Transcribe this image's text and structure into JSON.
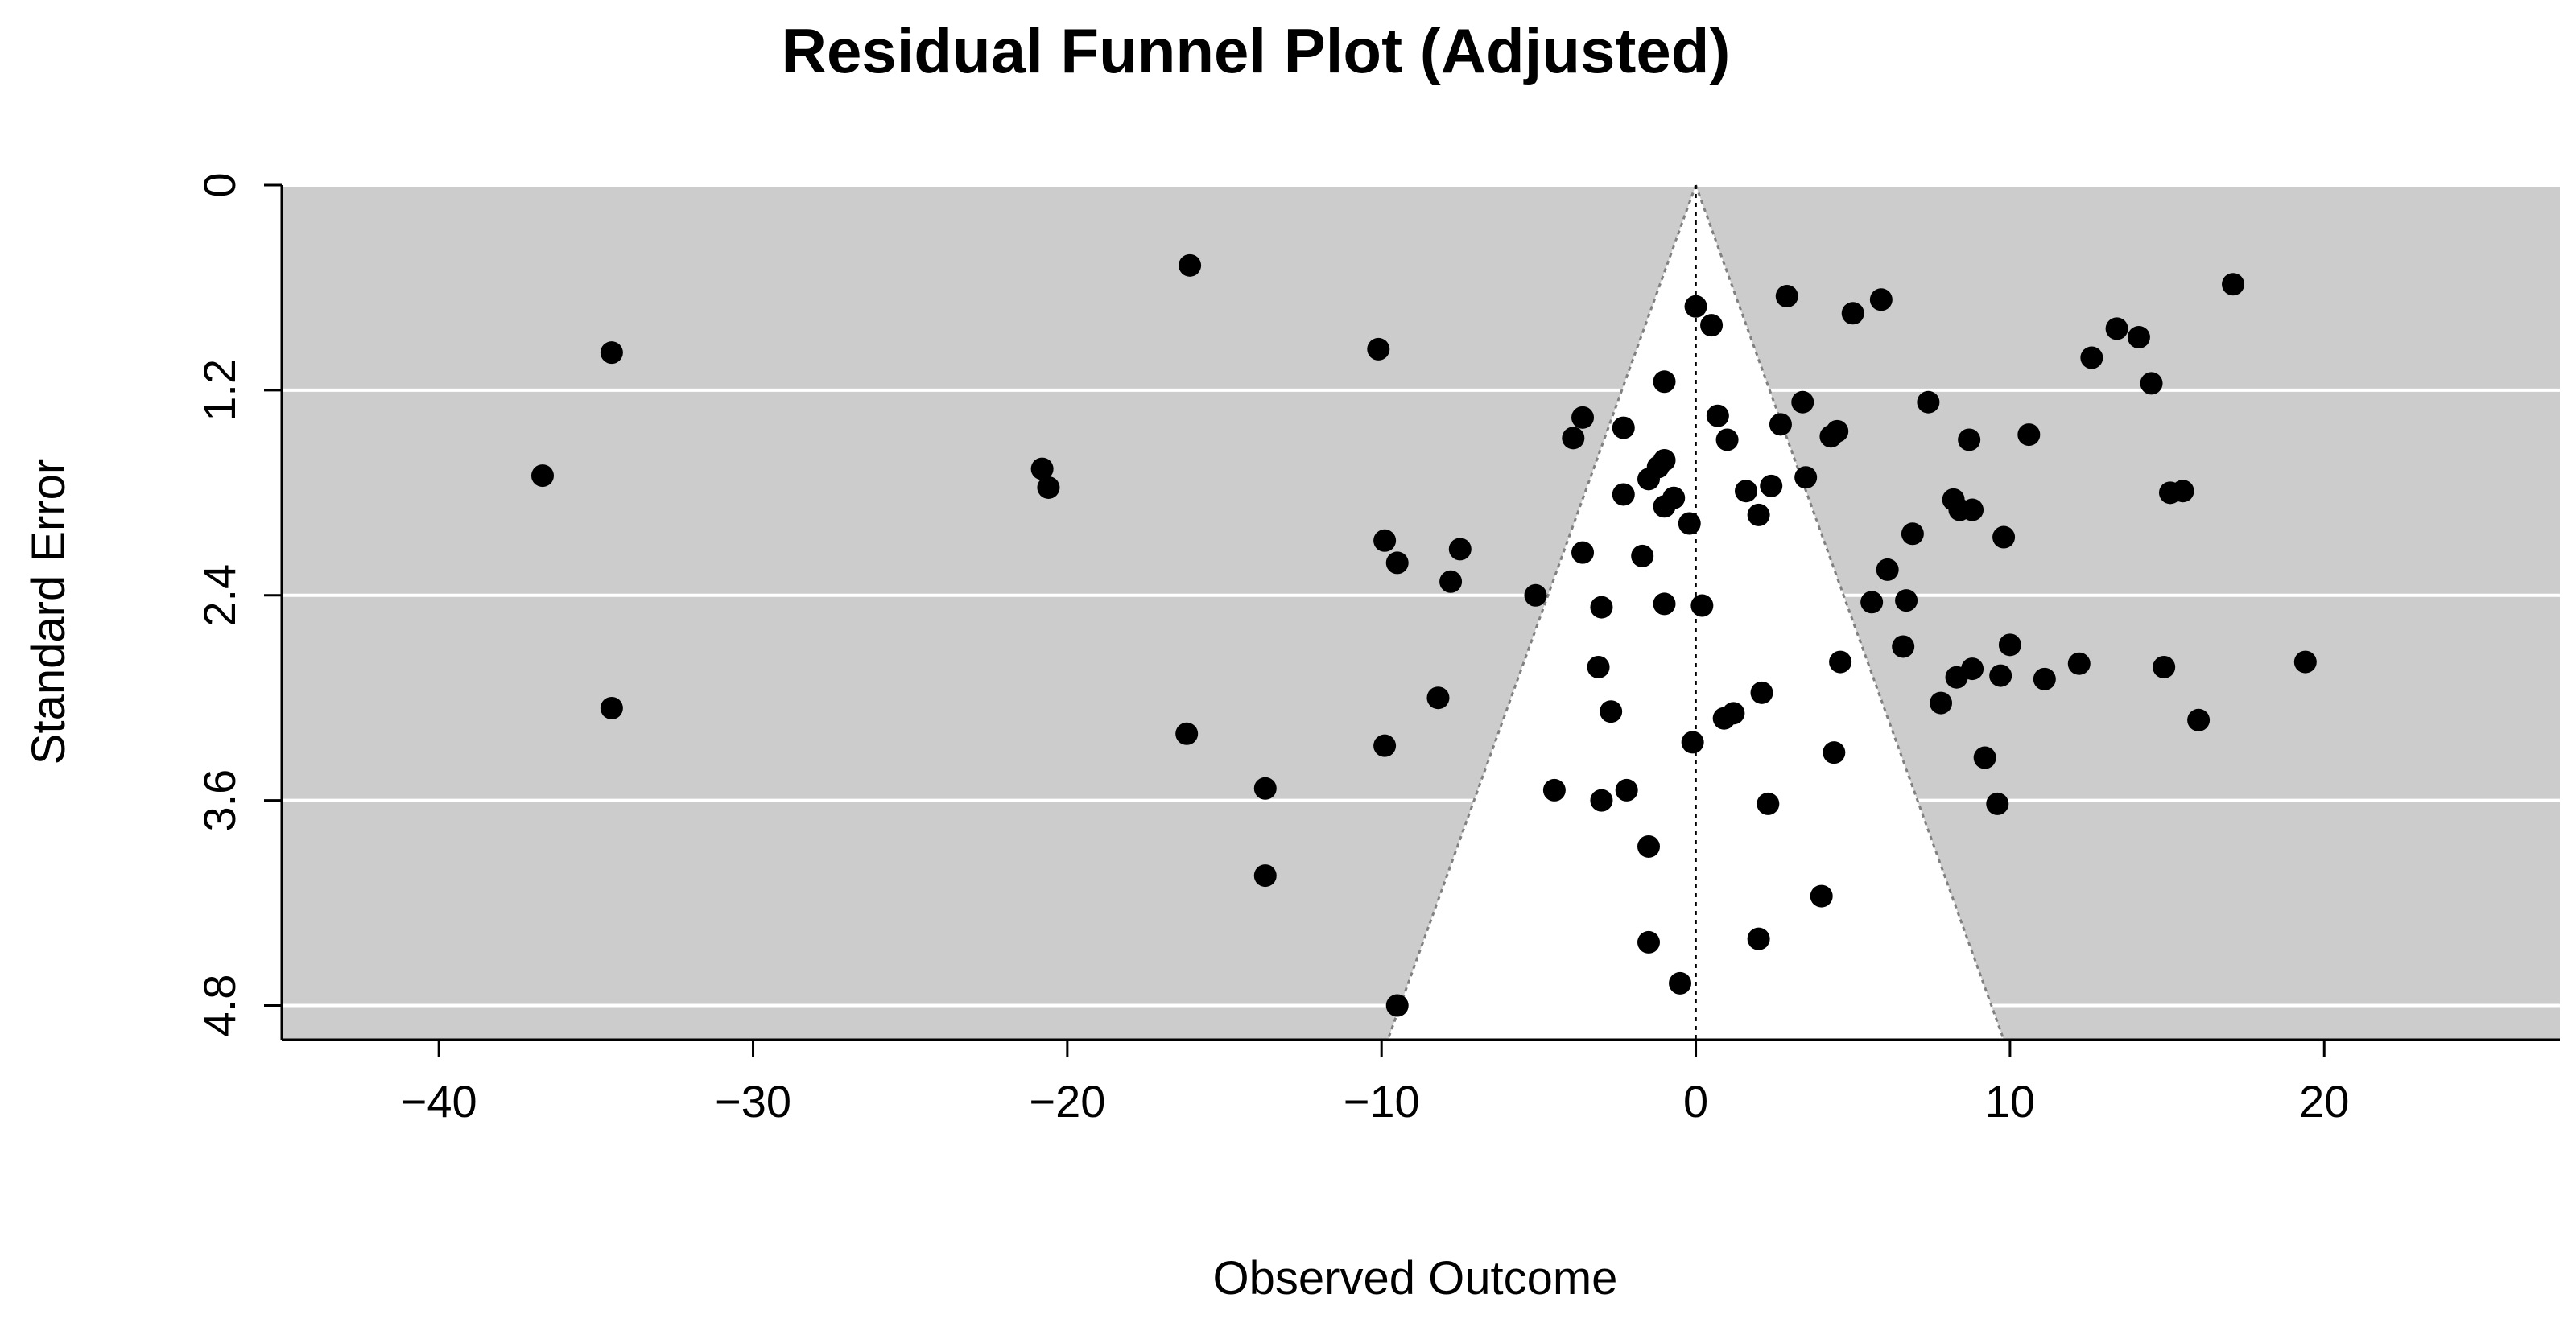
{
  "chart_data": {
    "type": "scatter",
    "title": "Residual Funnel Plot (Adjusted)",
    "xlabel": "Observed Outcome",
    "ylabel": "Standard Error",
    "xlim": [
      -45,
      27.5
    ],
    "ylim": [
      0,
      5.0
    ],
    "y_reversed": true,
    "x_ticks": [
      "-40",
      "-30",
      "-20",
      "-10",
      "0",
      "10",
      "20"
    ],
    "y_ticks": [
      "0",
      "1.2",
      "2.4",
      "3.6",
      "4.8"
    ],
    "grid": true,
    "legend": "none",
    "funnel": {
      "center": 0,
      "z": 1.96,
      "se_max": 5.0
    },
    "colors": {
      "panel_bg": "#cccccc",
      "funnel_bg": "#ffffff",
      "points": "#000000",
      "grid": "#ffffff",
      "funnel_edge": "#808080"
    },
    "points": [
      [
        -36.7,
        1.7
      ],
      [
        -34.5,
        0.98
      ],
      [
        -34.5,
        3.06
      ],
      [
        -16.1,
        0.47
      ],
      [
        -20.8,
        1.66
      ],
      [
        -20.6,
        1.77
      ],
      [
        -16.2,
        3.21
      ],
      [
        -13.7,
        3.53
      ],
      [
        -13.7,
        4.04
      ],
      [
        -10.1,
        0.96
      ],
      [
        -9.9,
        2.08
      ],
      [
        -9.5,
        2.21
      ],
      [
        -9.9,
        3.28
      ],
      [
        -8.2,
        3.0
      ],
      [
        -7.8,
        2.32
      ],
      [
        -7.5,
        2.13
      ],
      [
        -9.5,
        4.8
      ],
      [
        -5.1,
        2.4
      ],
      [
        -4.5,
        3.54
      ],
      [
        -3.9,
        1.48
      ],
      [
        -3.6,
        1.36
      ],
      [
        -3.6,
        2.15
      ],
      [
        -3.1,
        2.82
      ],
      [
        -3.0,
        2.47
      ],
      [
        -3.0,
        3.6
      ],
      [
        -2.7,
        3.08
      ],
      [
        -2.3,
        1.42
      ],
      [
        -2.3,
        1.81
      ],
      [
        -2.2,
        3.54
      ],
      [
        -1.7,
        2.17
      ],
      [
        -1.5,
        1.72
      ],
      [
        -1.5,
        3.87
      ],
      [
        -1.5,
        4.43
      ],
      [
        -1.2,
        1.65
      ],
      [
        -1.0,
        1.15
      ],
      [
        -1.0,
        1.61
      ],
      [
        -1.0,
        1.88
      ],
      [
        -1.0,
        2.45
      ],
      [
        -0.7,
        1.83
      ],
      [
        -0.5,
        4.67
      ],
      [
        -0.2,
        1.98
      ],
      [
        -0.1,
        3.26
      ],
      [
        0.0,
        0.71
      ],
      [
        0.2,
        2.46
      ],
      [
        0.5,
        0.82
      ],
      [
        0.7,
        1.35
      ],
      [
        1.0,
        1.49
      ],
      [
        0.9,
        3.12
      ],
      [
        1.2,
        3.09
      ],
      [
        1.6,
        1.79
      ],
      [
        2.0,
        1.93
      ],
      [
        2.0,
        4.41
      ],
      [
        2.1,
        2.97
      ],
      [
        2.4,
        1.76
      ],
      [
        2.3,
        3.62
      ],
      [
        2.7,
        1.4
      ],
      [
        2.9,
        0.65
      ],
      [
        3.4,
        1.27
      ],
      [
        3.5,
        1.71
      ],
      [
        4.0,
        4.16
      ],
      [
        4.3,
        1.47
      ],
      [
        4.5,
        1.44
      ],
      [
        4.4,
        3.32
      ],
      [
        4.6,
        2.79
      ],
      [
        5.0,
        0.75
      ],
      [
        5.6,
        2.44
      ],
      [
        5.9,
        0.67
      ],
      [
        6.1,
        2.25
      ],
      [
        6.7,
        2.43
      ],
      [
        6.6,
        2.7
      ],
      [
        6.9,
        2.04
      ],
      [
        7.4,
        1.27
      ],
      [
        7.8,
        3.03
      ],
      [
        8.2,
        1.84
      ],
      [
        8.3,
        2.88
      ],
      [
        8.4,
        1.9
      ],
      [
        8.8,
        1.9
      ],
      [
        8.8,
        2.83
      ],
      [
        8.7,
        1.49
      ],
      [
        9.2,
        3.35
      ],
      [
        9.6,
        3.62
      ],
      [
        9.8,
        2.06
      ],
      [
        9.7,
        2.87
      ],
      [
        10.0,
        2.69
      ],
      [
        10.6,
        1.46
      ],
      [
        11.1,
        2.89
      ],
      [
        12.2,
        2.8
      ],
      [
        12.6,
        1.01
      ],
      [
        13.4,
        0.84
      ],
      [
        14.1,
        0.89
      ],
      [
        14.5,
        1.16
      ],
      [
        14.9,
        2.82
      ],
      [
        15.1,
        1.8
      ],
      [
        15.5,
        1.79
      ],
      [
        16.0,
        3.13
      ],
      [
        17.1,
        0.58
      ],
      [
        19.4,
        2.79
      ]
    ]
  }
}
